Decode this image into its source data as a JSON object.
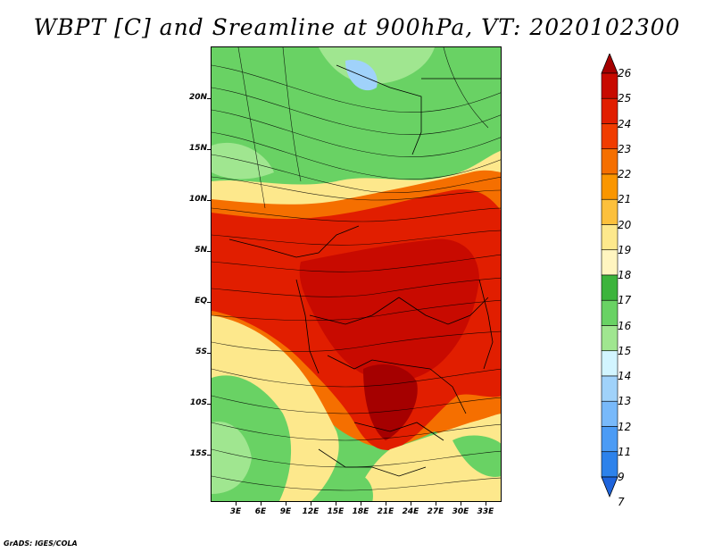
{
  "title": "WBPT [C] and Sreamline at 900hPa, VT: 2020102300",
  "credit": "GrADS: IGES/COLA",
  "map": {
    "lat_labels": [
      "20N",
      "15N",
      "10N",
      "5N",
      "EQ",
      "5S",
      "10S",
      "15S"
    ],
    "lon_labels": [
      "3E",
      "6E",
      "9E",
      "12E",
      "15E",
      "18E",
      "21E",
      "24E",
      "27E",
      "30E",
      "33E"
    ]
  },
  "colorbar": {
    "levels": [
      "26",
      "25",
      "24",
      "23",
      "22",
      "21",
      "20",
      "19",
      "18",
      "17",
      "16",
      "15",
      "14",
      "13",
      "12",
      "11",
      "9",
      "7"
    ],
    "colors": [
      "#a50000",
      "#c80a00",
      "#e11e00",
      "#f03c00",
      "#f56f00",
      "#fa9600",
      "#fcc03c",
      "#fde88c",
      "#fff5c0",
      "#3cb43c",
      "#69d264",
      "#a0e690",
      "#d2f5ff",
      "#a0d2fa",
      "#78b9fa",
      "#4b9bf5",
      "#2d82eb",
      "#1e64dc"
    ]
  }
}
